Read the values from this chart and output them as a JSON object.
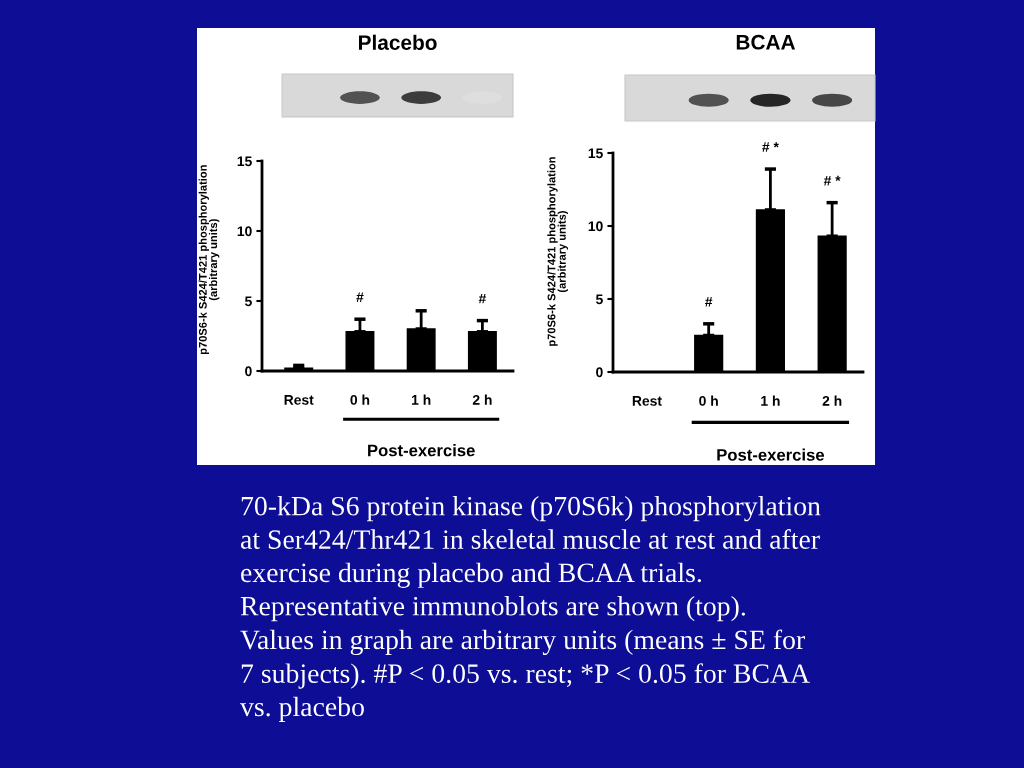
{
  "chart_data": [
    {
      "type": "bar",
      "title": "Placebo",
      "ylabel": "p70S6-k S424/T421 phosphorylation\n(arbitrary units)",
      "categories": [
        "Rest",
        "0 h",
        "1 h",
        "2 h"
      ],
      "values": [
        0.2,
        2.8,
        3.0,
        2.8
      ],
      "errors": [
        [
          0.2,
          0.4
        ],
        [
          2.8,
          3.7
        ],
        [
          3.0,
          4.3
        ],
        [
          2.8,
          3.6
        ]
      ],
      "color": "#000000",
      "ylim": [
        0,
        15
      ],
      "yticks": [
        0,
        5,
        10,
        15
      ],
      "annotations": [
        {
          "text": "#",
          "x": "0 h",
          "y": 3.7
        },
        {
          "text": "#",
          "x": "2 h",
          "y": 3.6
        },
        "Post-exercise"
      ]
    },
    {
      "type": "bar",
      "title": "BCAA",
      "ylabel": "p70S6-k S424/T421 phosphorylation\n(arbitrary units)",
      "categories": [
        "Rest",
        "0 h",
        "1 h",
        "2 h"
      ],
      "values": [
        0,
        2.5,
        11.1,
        9.3
      ],
      "errors": [
        null,
        [
          2.5,
          3.3
        ],
        [
          11.1,
          13.9
        ],
        [
          9.3,
          11.6
        ]
      ],
      "color": "#000000",
      "ylim": [
        0,
        15
      ],
      "yticks": [
        0,
        5,
        10,
        15
      ],
      "annotations": [
        {
          "text": "#",
          "x": "0 h",
          "y": 3.3
        },
        {
          "text": "# *",
          "x": "1 h",
          "y": 13.9
        },
        {
          "text": "# *",
          "x": "2 h",
          "y": 11.6
        },
        "Post-exercise"
      ]
    },
    {
      "type": "other",
      "annotations": [
        "70-kDa S6 protein kinase (p70S6k) phosphorylation\nat Ser424/Thr421 in skeletal muscle at rest and after\nexercise during placebo and BCAA trials.\nRepresentative immunoblots are shown (top).\nValues in graph are arbitrary units (means ± SE for\n7 subjects). #P < 0.05 vs. rest; *P < 0.05 for BCAA\nvs. placebo"
      ]
    }
  ]
}
